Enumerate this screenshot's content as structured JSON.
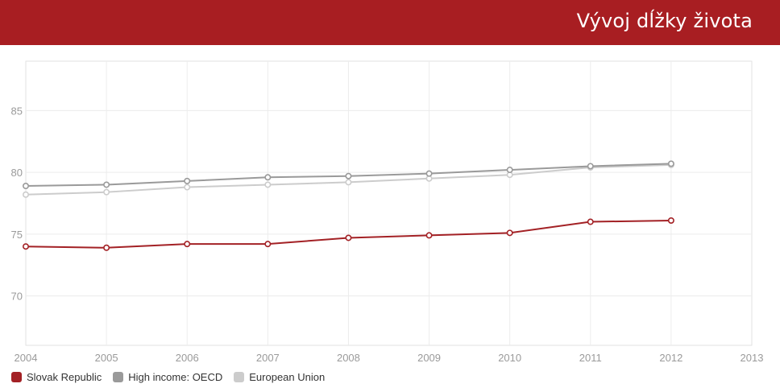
{
  "header": {
    "title": "Vývoj dĺžky života"
  },
  "chart_data": {
    "type": "line",
    "title": "Vývoj dĺžky života",
    "x": [
      2004,
      2005,
      2006,
      2007,
      2008,
      2009,
      2010,
      2011,
      2012
    ],
    "xlim": [
      2004,
      2013
    ],
    "ylim": [
      66,
      89
    ],
    "xticks": [
      "2004",
      "2005",
      "2006",
      "2007",
      "2008",
      "2009",
      "2010",
      "2011",
      "2012",
      "2013"
    ],
    "yticks": [
      70,
      75,
      80,
      85
    ],
    "grid": true,
    "legend": "bottom-left",
    "series": [
      {
        "name": "Slovak Republic",
        "color": "#a32125",
        "values": [
          74.0,
          73.9,
          74.2,
          74.2,
          74.7,
          74.9,
          75.1,
          76.0,
          76.1
        ]
      },
      {
        "name": "High income: OECD",
        "color": "#9a9a9a",
        "values": [
          78.9,
          79.0,
          79.3,
          79.6,
          79.7,
          79.9,
          80.2,
          80.5,
          80.7
        ]
      },
      {
        "name": "European Union",
        "color": "#cccccc",
        "values": [
          78.2,
          78.4,
          78.8,
          79.0,
          79.2,
          79.5,
          79.8,
          80.4,
          80.6
        ]
      }
    ]
  }
}
